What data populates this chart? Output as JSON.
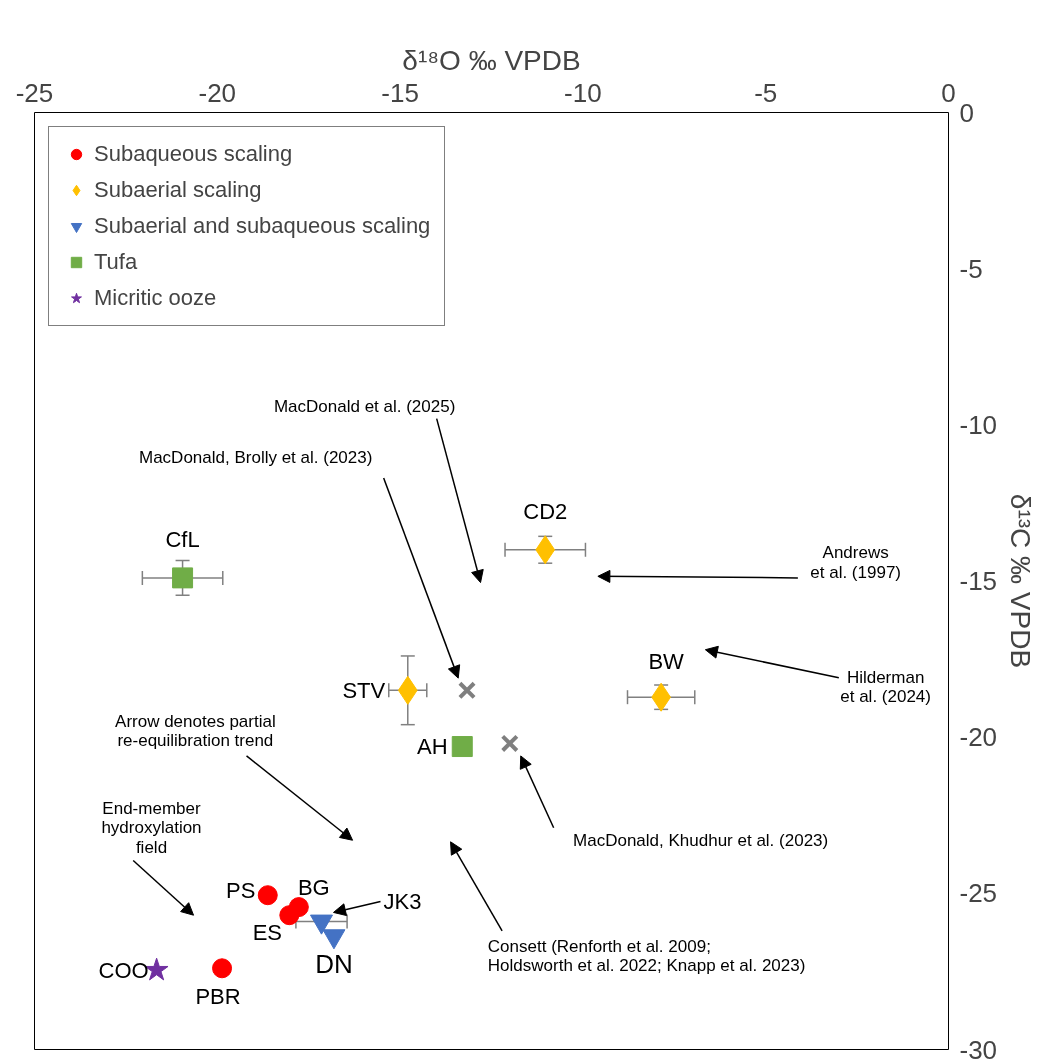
{
  "chart_data": {
    "type": "scatter",
    "xlabel": "δ¹⁸O ‰ VPDB",
    "ylabel": "δ¹³C ‰ VPDB",
    "xlim": [
      -25,
      0
    ],
    "ylim": [
      -30,
      0
    ],
    "xticks": [
      -25,
      -20,
      -15,
      -10,
      -5,
      0
    ],
    "yticks": [
      -30,
      -25,
      -20,
      -15,
      -10,
      -5,
      0
    ],
    "legend": "top left",
    "series": [
      {
        "name": "Subaqueous scaling",
        "color": "#ff0000",
        "marker": "circle",
        "x": [
          -18.62,
          -17.77,
          -18.03,
          -19.87
        ],
        "values": [
          -25.06,
          -25.44,
          -25.7,
          -27.4
        ]
      },
      {
        "name": "Subaerial scaling",
        "color": "#ffc000",
        "marker": "diamond",
        "x": [
          -11.03,
          -14.79,
          -7.86
        ],
        "values": [
          -14.0,
          -18.5,
          -18.72
        ],
        "xerrors": [
          1.1,
          0.52,
          0.92
        ],
        "errors": [
          0.43,
          1.1,
          0.39
        ]
      },
      {
        "name": "Subaerial and subaqueous scaling",
        "color": "#4472c4",
        "marker": "triangle",
        "x": [
          -17.15,
          -16.81
        ],
        "values": [
          -25.9,
          -26.37
        ],
        "xerrors": [
          0.7,
          null
        ]
      },
      {
        "name": "Tufa",
        "color": "#70ad47",
        "marker": "square",
        "x": [
          -20.95,
          -13.3
        ],
        "values": [
          -14.9,
          -20.3
        ],
        "xerrors": [
          1.1,
          null
        ],
        "errors": [
          0.56,
          null
        ]
      },
      {
        "name": "Micritic ooze",
        "color": "#7030a0",
        "marker": "star",
        "x": [
          -21.66
        ],
        "values": [
          -27.46
        ]
      },
      {
        "color": "#7f7f7f",
        "marker": "cross",
        "x": [
          -13.17,
          -12.0
        ],
        "values": [
          -18.5,
          -20.2
        ]
      }
    ],
    "annotations": [
      "MacDonald et al. (2025)",
      "MacDonald, Brolly et al. (2023)",
      "Andrews\net al. (1997)",
      "Hilderman\net al. (2024)",
      "Arrow denotes partial\nre-equilibration trend",
      "End-member\nhydroxylation\nfield",
      "MacDonald, Khudhur et al. (2023)",
      "Consett (Renforth et al. 2009;\nHoldsworth et al. 2022; Knapp et al. 2023)",
      {
        "text": "CfL",
        "x": -20.95,
        "y": -14.9
      },
      {
        "text": "CD2",
        "x": -11.03,
        "y": -14.0
      },
      {
        "text": "STV",
        "x": -14.79,
        "y": -18.5
      },
      {
        "text": "BW",
        "x": -7.86,
        "y": -18.72
      },
      {
        "text": "AH",
        "x": -13.3,
        "y": -20.3
      },
      {
        "text": "PS",
        "x": -18.62,
        "y": -25.06
      },
      {
        "text": "BG",
        "x": -17.77,
        "y": -25.44
      },
      {
        "text": "ES",
        "x": -18.03,
        "y": -25.7
      },
      {
        "text": "JK3",
        "x": -17.15,
        "y": -25.9
      },
      {
        "text": "DN",
        "x": -16.81,
        "y": -26.37
      },
      {
        "text": "COO",
        "x": -21.66,
        "y": -27.46
      },
      {
        "text": "PBR",
        "x": -19.87,
        "y": -27.4
      }
    ]
  }
}
